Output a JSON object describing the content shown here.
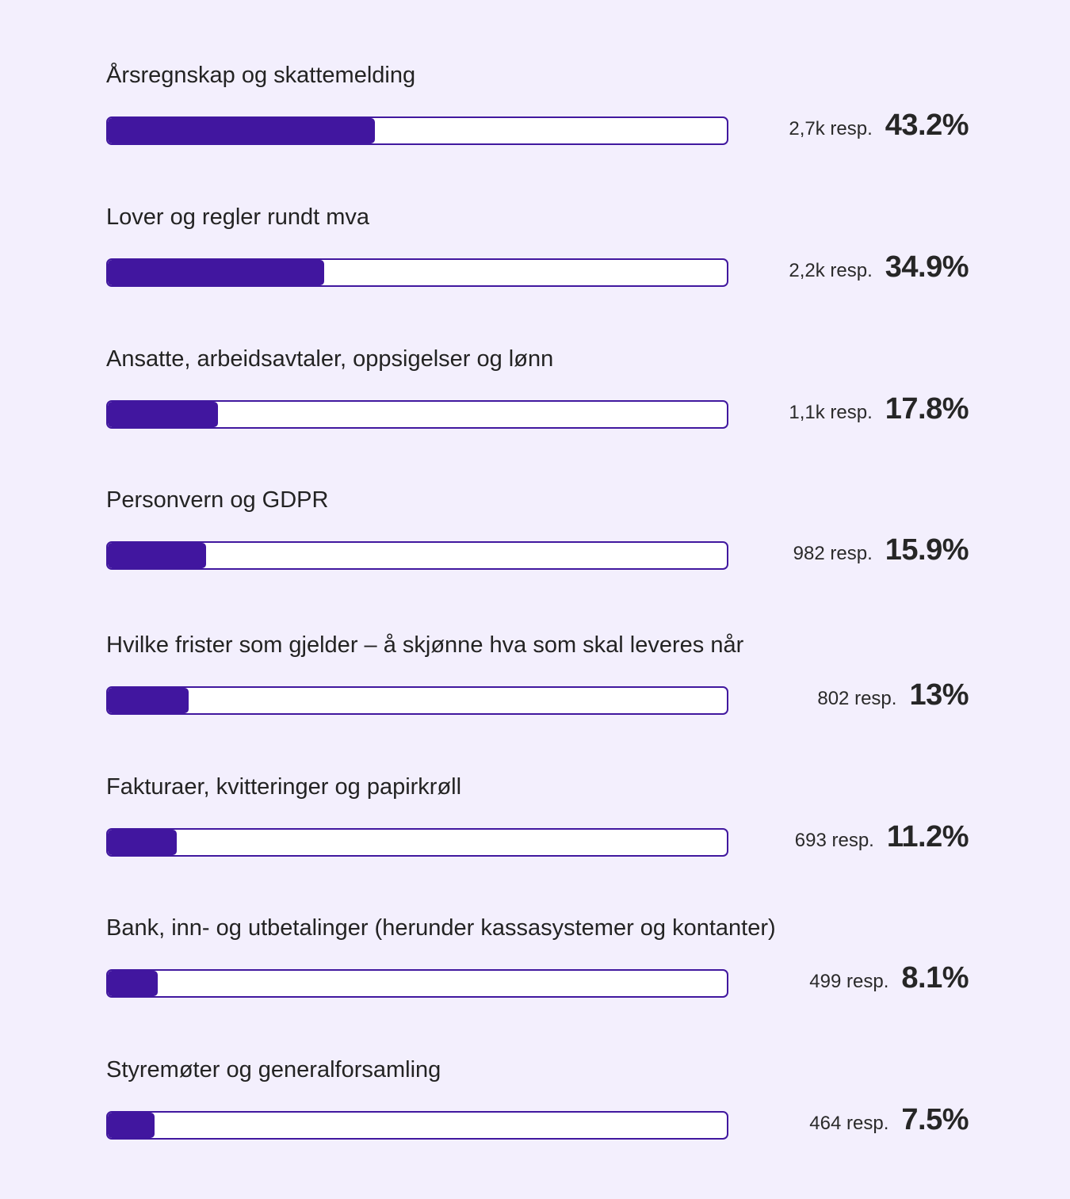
{
  "chart_data": {
    "type": "bar",
    "orientation": "horizontal",
    "title": "",
    "xlabel": "",
    "ylabel": "",
    "xlim": [
      0,
      100
    ],
    "grid": false,
    "legend": null,
    "categories": [
      "Årsregnskap og skattemelding",
      "Lover og regler rundt mva",
      "Ansatte, arbeidsavtaler, oppsigelser og lønn",
      "Personvern og GDPR",
      "Hvilke frister som gjelder – å skjønne hva som skal leveres når",
      "Fakturaer, kvitteringer og papirkrøll",
      "Bank, inn- og utbetalinger (herunder kassasystemer og kontanter)",
      "Styremøter og generalforsamling"
    ],
    "values": [
      43.2,
      34.9,
      17.8,
      15.9,
      13,
      11.2,
      8.1,
      7.5
    ],
    "responses": [
      "2,7k",
      "2,2k",
      "1,1k",
      "982",
      "802",
      "693",
      "499",
      "464"
    ],
    "colors": {
      "bar": "#41169f",
      "track": "#ffffff",
      "background": "#f3effd"
    }
  },
  "rows": [
    {
      "label": "Årsregnskap og skattemelding",
      "resp": "2,7k resp.",
      "pct": "43.2%",
      "value": 43.2
    },
    {
      "label": "Lover og regler rundt mva",
      "resp": "2,2k resp.",
      "pct": "34.9%",
      "value": 34.9
    },
    {
      "label": "Ansatte, arbeidsavtaler, oppsigelser og lønn",
      "resp": "1,1k resp.",
      "pct": "17.8%",
      "value": 17.8
    },
    {
      "label": "Personvern og GDPR",
      "resp": "982 resp.",
      "pct": "15.9%",
      "value": 15.9
    },
    {
      "label": "Hvilke frister som gjelder – å skjønne hva som skal leveres når",
      "resp": "802 resp.",
      "pct": "13%",
      "value": 13
    },
    {
      "label": "Fakturaer, kvitteringer og papirkrøll",
      "resp": "693 resp.",
      "pct": "11.2%",
      "value": 11.2
    },
    {
      "label": "Bank, inn- og utbetalinger (herunder kassasystemer og kontanter)",
      "resp": "499 resp.",
      "pct": "8.1%",
      "value": 8.1
    },
    {
      "label": "Styremøter og generalforsamling",
      "resp": "464 resp.",
      "pct": "7.5%",
      "value": 7.5
    }
  ]
}
